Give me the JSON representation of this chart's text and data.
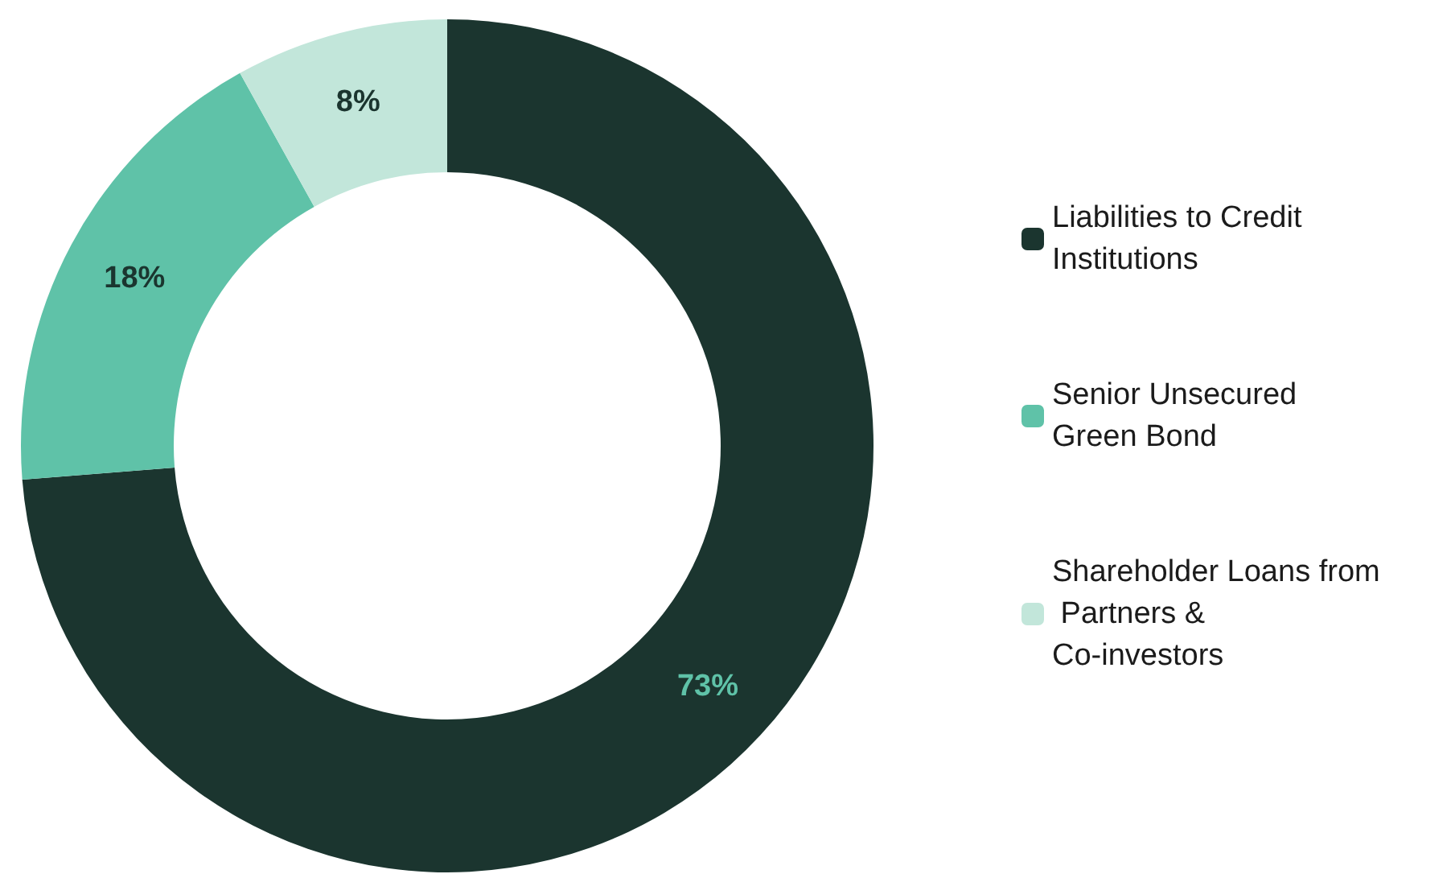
{
  "chart_data": {
    "type": "donut",
    "categories": [
      "Liabilities to Credit Institutions",
      "Senior Unsecured Green Bond",
      "Shareholder Loans from Partners & Co-investors"
    ],
    "values": [
      73,
      18,
      8
    ],
    "colors": [
      "#1b352f",
      "#5fc2a8",
      "#c2e6da"
    ],
    "value_labels": [
      "73%",
      "18%",
      "8%"
    ],
    "legend": "right"
  }
}
